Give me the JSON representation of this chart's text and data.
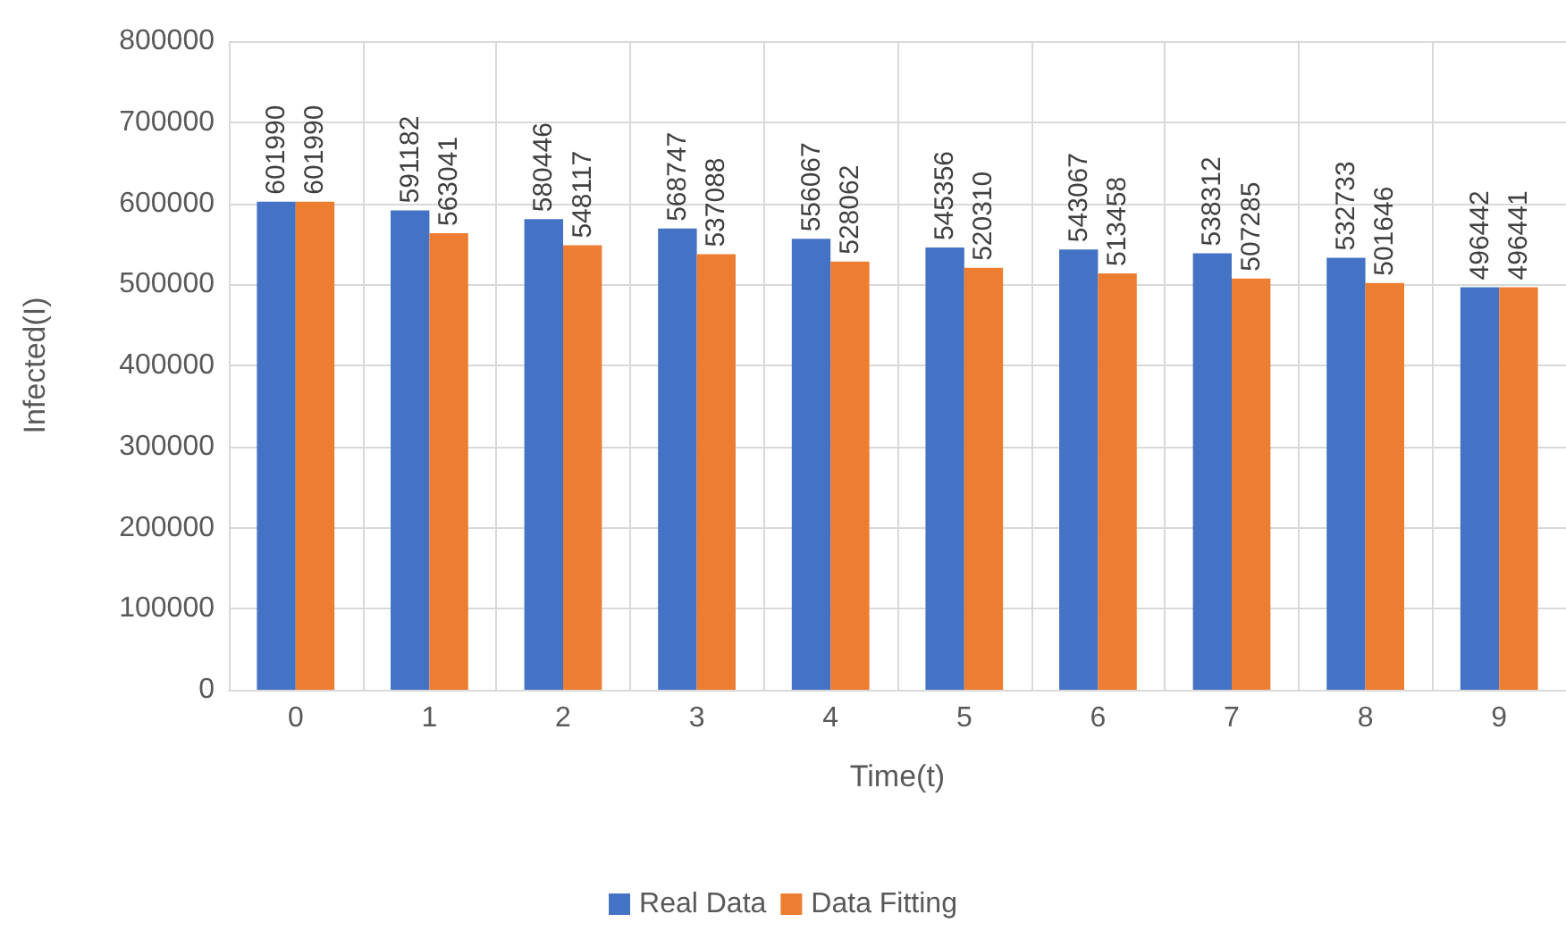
{
  "chart_data": {
    "type": "bar",
    "xlabel": "Time(t)",
    "ylabel": "Infected(I)",
    "categories": [
      "0",
      "1",
      "2",
      "3",
      "4",
      "5",
      "6",
      "7",
      "8",
      "9"
    ],
    "series": [
      {
        "name": "Real Data",
        "color": "#4472c4",
        "values": [
          601990,
          591182,
          580446,
          568747,
          556067,
          545356,
          543067,
          538312,
          532733,
          496442
        ]
      },
      {
        "name": "Data Fitting",
        "color": "#ed7d31",
        "values": [
          601990,
          563041,
          548117,
          537088,
          528062,
          520310,
          513458,
          507285,
          501646,
          496441
        ]
      }
    ],
    "ylim": [
      0,
      800000
    ],
    "yticks": [
      0,
      100000,
      200000,
      300000,
      400000,
      500000,
      600000,
      700000,
      800000
    ],
    "grid": true,
    "legend": "bottom",
    "data_labels": true
  }
}
